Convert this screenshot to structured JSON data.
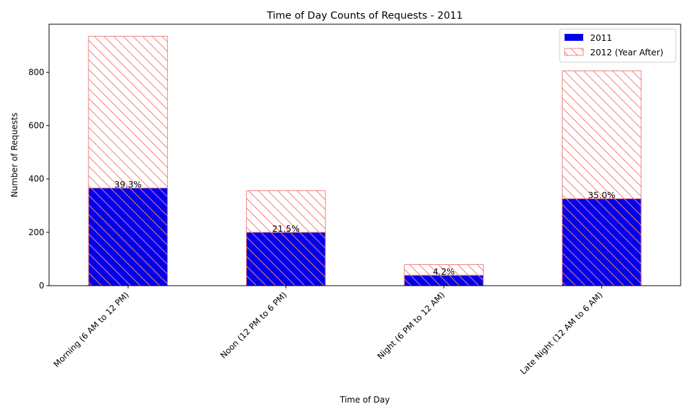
{
  "chart_data": {
    "type": "bar",
    "title": "Time of Day Counts of Requests - 2011",
    "xlabel": "Time of Day",
    "ylabel": "Number of Requests",
    "categories": [
      "Morning (6 AM to 12 PM)",
      "Noon (12 PM to 6 PM)",
      "Night (6 PM to 12 AM)",
      "Late Night (12 AM to 6 AM)"
    ],
    "series": [
      {
        "name": "2011",
        "values": [
          366,
          200,
          39,
          326
        ],
        "color": "#0000ee",
        "style": "solid"
      },
      {
        "name": "2012 (Year After)",
        "values": [
          935,
          356,
          79,
          805
        ],
        "color": "#f08080",
        "style": "hatched"
      }
    ],
    "bar_labels": [
      "39.3%",
      "21.5%",
      "4.2%",
      "35.0%"
    ],
    "ylim": [
      0,
      980
    ],
    "yticks": [
      0,
      200,
      400,
      600,
      800
    ],
    "legend_position": "top-right",
    "grid": false,
    "overlay": true
  }
}
